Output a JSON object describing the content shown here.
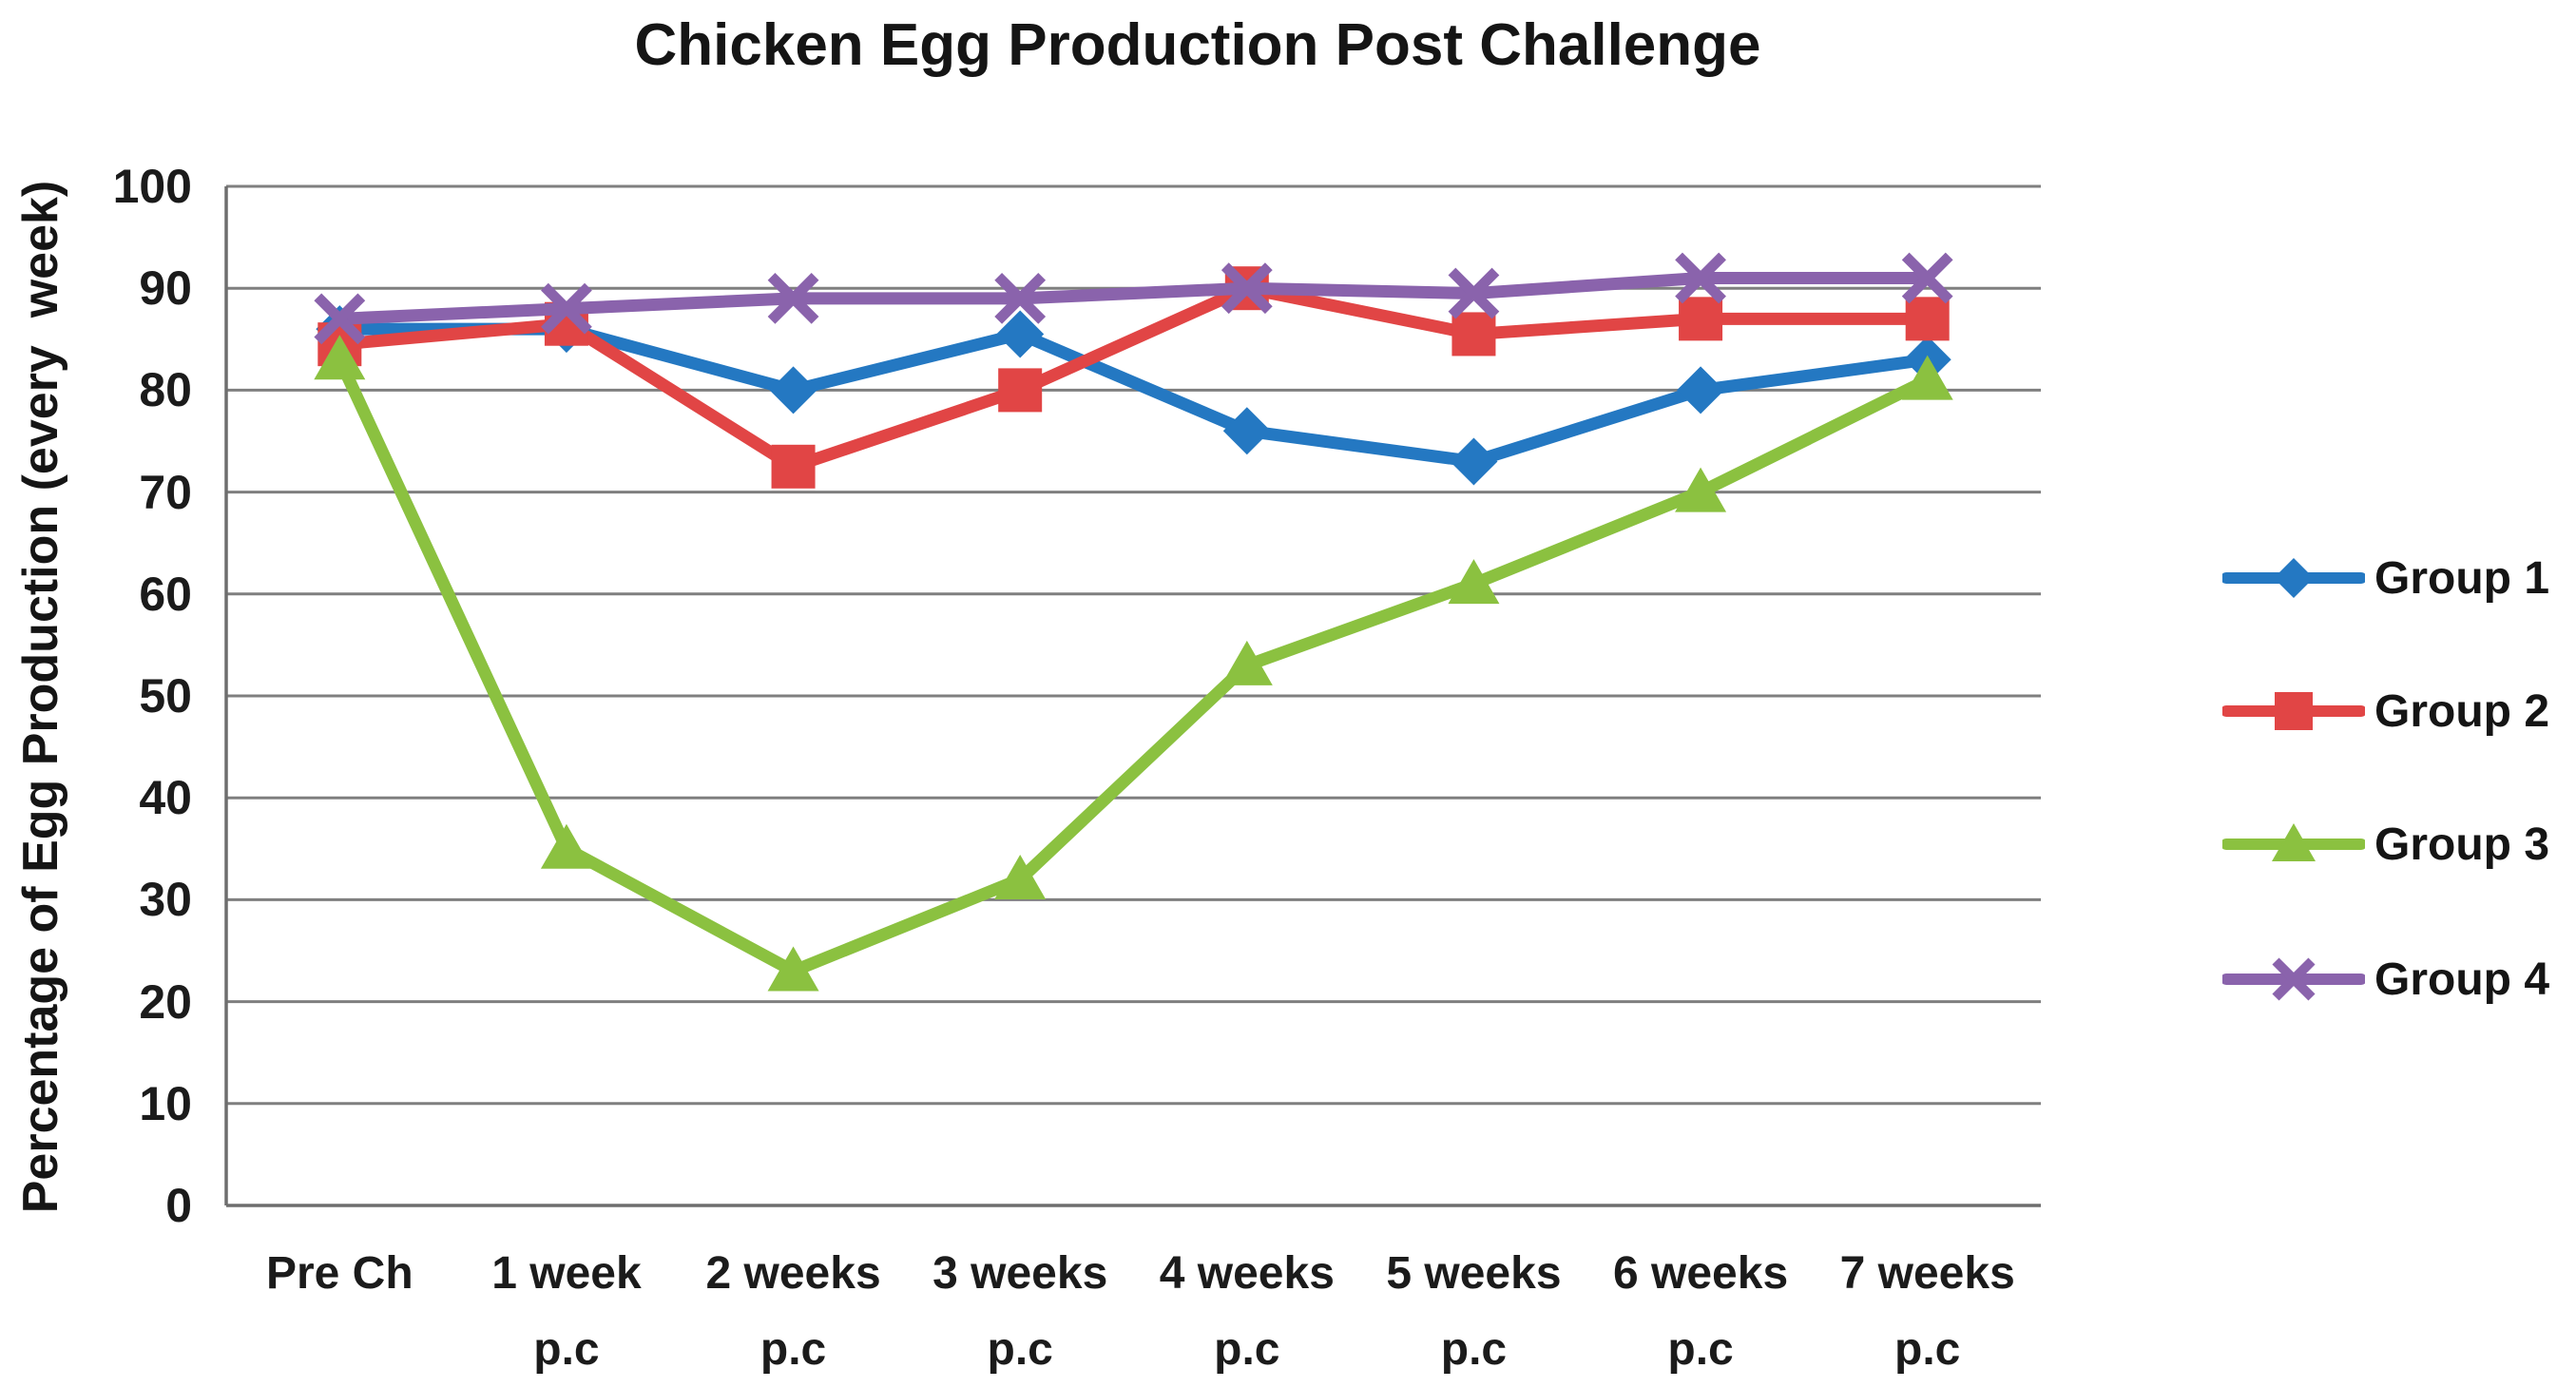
{
  "chart_data": {
    "type": "line",
    "title": "Chicken Egg Production Post Challenge",
    "xlabel": "",
    "ylabel": "Percentage of Egg Production (every  week)",
    "ylim": [
      0,
      100
    ],
    "yticks": [
      0,
      10,
      20,
      30,
      40,
      50,
      60,
      70,
      80,
      90,
      100
    ],
    "grid": true,
    "legend_position": "right-outside",
    "categories": [
      {
        "label": "Pre Ch",
        "sub": ""
      },
      {
        "label": "1 week",
        "sub": "p.c"
      },
      {
        "label": "2 weeks",
        "sub": "p.c"
      },
      {
        "label": "3 weeks",
        "sub": "p.c"
      },
      {
        "label": "4 weeks",
        "sub": "p.c"
      },
      {
        "label": "5 weeks",
        "sub": "p.c"
      },
      {
        "label": "6 weeks",
        "sub": "p.c"
      },
      {
        "label": "7 weeks",
        "sub": "p.c"
      }
    ],
    "series": [
      {
        "name": "Group 1",
        "color": "#2478C2",
        "marker": "diamond",
        "values": [
          86,
          86,
          80,
          85.5,
          76,
          73,
          80,
          83
        ]
      },
      {
        "name": "Group 2",
        "color": "#E14545",
        "marker": "square",
        "values": [
          84.5,
          86.5,
          72.5,
          80,
          90,
          85.5,
          87,
          87
        ]
      },
      {
        "name": "Group 3",
        "color": "#8BC140",
        "marker": "triangle",
        "values": [
          83,
          35,
          23,
          32,
          53,
          61,
          70,
          81
        ]
      },
      {
        "name": "Group 4",
        "color": "#8A63AC",
        "marker": "x",
        "values": [
          87,
          88,
          89,
          89,
          90,
          89.5,
          91,
          91
        ]
      }
    ],
    "colors": {
      "grid": "#7f7f7f",
      "axis": "#6e6e6e",
      "text": "#151515",
      "background": "#ffffff"
    }
  }
}
